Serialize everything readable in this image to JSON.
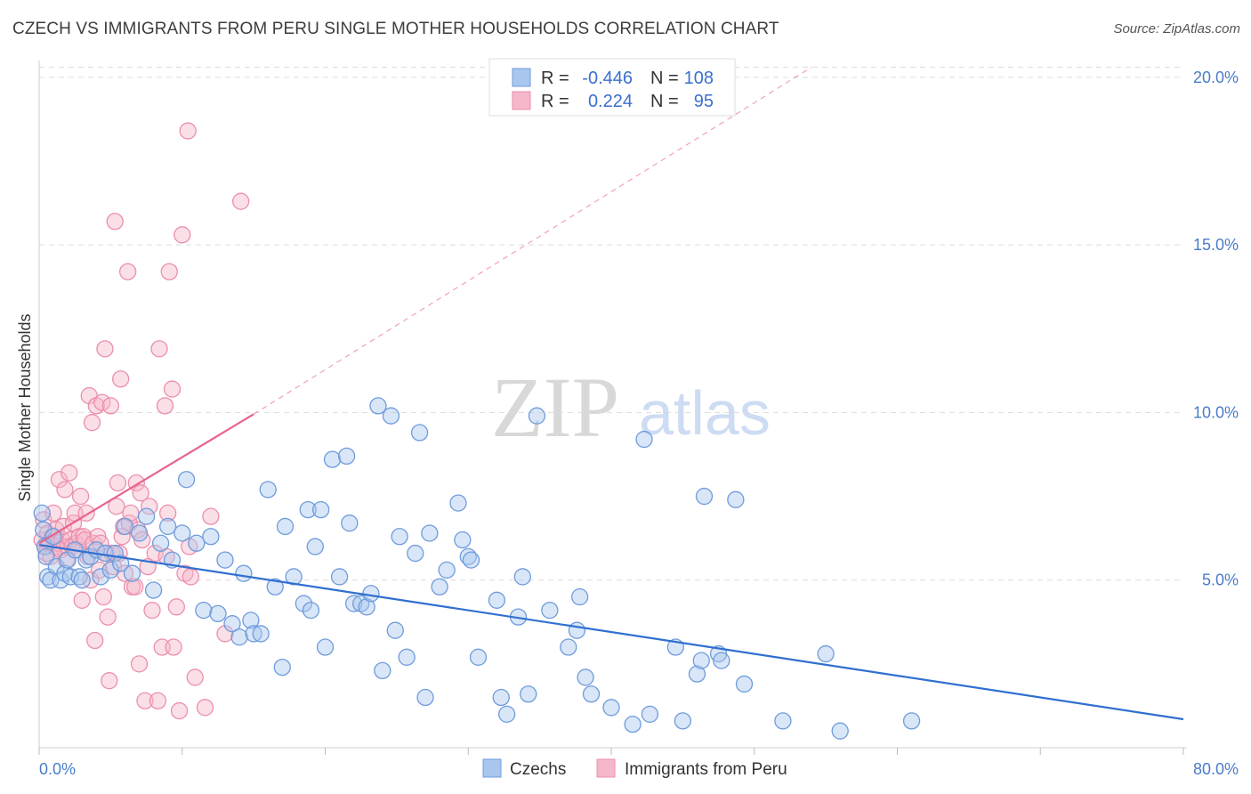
{
  "title": "CZECH VS IMMIGRANTS FROM PERU SINGLE MOTHER HOUSEHOLDS CORRELATION CHART",
  "source": "Source: ZipAtlas.com",
  "watermark": {
    "zip": "ZIP",
    "atlas": "atlas"
  },
  "legend": {
    "rows": [
      {
        "r_label": "R =",
        "r_value": "-0.446",
        "n_label": "N =",
        "n_value": "108"
      },
      {
        "r_label": "R =",
        "r_value": "0.224",
        "n_label": "N =",
        "n_value": "95"
      }
    ]
  },
  "bottom_legend": [
    "Czechs",
    "Immigrants from Peru"
  ],
  "colors": {
    "czechs_fill": "#a9c7ee",
    "czechs_stroke": "#6f9bdc",
    "czechs_line": "#2f6fd0",
    "peru_fill": "#f5b7c9",
    "peru_stroke": "#ec8fab",
    "peru_line": "#e8628c",
    "grid": "#dcdcdc",
    "tick": "#4a7cc9"
  },
  "chart_data": {
    "type": "scatter",
    "title": "CZECH VS IMMIGRANTS FROM PERU SINGLE MOTHER HOUSEHOLDS CORRELATION CHART",
    "xlabel": "",
    "ylabel": "Single Mother Households",
    "xlim": [
      0,
      80
    ],
    "ylim": [
      0,
      20.5
    ],
    "x_tick_labels": [
      "0.0%",
      "80.0%"
    ],
    "y_ticks": [
      5,
      10,
      15,
      20
    ],
    "y_tick_labels": [
      "5.0%",
      "10.0%",
      "15.0%",
      "20.0%"
    ],
    "grid": true,
    "legend_position": "top-center",
    "series": [
      {
        "name": "Czechs",
        "r": -0.446,
        "n": 108,
        "trend": {
          "x0": 0,
          "y0": 6.05,
          "x1": 80,
          "y1": 0.85
        },
        "points": [
          [
            0.2,
            7.0
          ],
          [
            0.3,
            6.5
          ],
          [
            0.4,
            6.0
          ],
          [
            0.5,
            5.7
          ],
          [
            0.6,
            5.1
          ],
          [
            0.8,
            5.0
          ],
          [
            1.0,
            6.3
          ],
          [
            1.2,
            5.4
          ],
          [
            1.5,
            5.0
          ],
          [
            1.8,
            5.2
          ],
          [
            2.0,
            5.6
          ],
          [
            2.2,
            5.1
          ],
          [
            2.5,
            5.9
          ],
          [
            2.8,
            5.1
          ],
          [
            3.0,
            5.0
          ],
          [
            3.3,
            5.6
          ],
          [
            3.6,
            5.7
          ],
          [
            4.0,
            5.9
          ],
          [
            4.3,
            5.1
          ],
          [
            4.6,
            5.8
          ],
          [
            5.0,
            5.3
          ],
          [
            5.3,
            5.8
          ],
          [
            5.7,
            5.5
          ],
          [
            6.0,
            6.6
          ],
          [
            6.5,
            5.2
          ],
          [
            7.0,
            6.4
          ],
          [
            7.5,
            6.9
          ],
          [
            8.0,
            4.7
          ],
          [
            8.5,
            6.1
          ],
          [
            9.0,
            6.6
          ],
          [
            9.3,
            5.6
          ],
          [
            10.0,
            6.4
          ],
          [
            10.3,
            8.0
          ],
          [
            11.0,
            6.1
          ],
          [
            11.5,
            4.1
          ],
          [
            12.0,
            6.3
          ],
          [
            12.5,
            4.0
          ],
          [
            13.0,
            5.6
          ],
          [
            13.5,
            3.7
          ],
          [
            14.0,
            3.3
          ],
          [
            14.3,
            5.2
          ],
          [
            14.8,
            3.8
          ],
          [
            15.0,
            3.4
          ],
          [
            15.5,
            3.4
          ],
          [
            16.0,
            7.7
          ],
          [
            16.5,
            4.8
          ],
          [
            17.0,
            2.4
          ],
          [
            17.2,
            6.6
          ],
          [
            17.8,
            5.1
          ],
          [
            18.5,
            4.3
          ],
          [
            18.8,
            7.1
          ],
          [
            19.0,
            4.1
          ],
          [
            19.3,
            6.0
          ],
          [
            19.7,
            7.1
          ],
          [
            20.0,
            3.0
          ],
          [
            20.5,
            8.6
          ],
          [
            21.0,
            5.1
          ],
          [
            21.5,
            8.7
          ],
          [
            21.7,
            6.7
          ],
          [
            22.0,
            4.3
          ],
          [
            22.5,
            4.3
          ],
          [
            22.9,
            4.2
          ],
          [
            23.2,
            4.6
          ],
          [
            23.7,
            10.2
          ],
          [
            24.0,
            2.3
          ],
          [
            24.6,
            9.9
          ],
          [
            24.9,
            3.5
          ],
          [
            25.2,
            6.3
          ],
          [
            25.7,
            2.7
          ],
          [
            26.3,
            5.8
          ],
          [
            26.6,
            9.4
          ],
          [
            27.0,
            1.5
          ],
          [
            27.3,
            6.4
          ],
          [
            28.0,
            4.8
          ],
          [
            28.5,
            5.3
          ],
          [
            29.3,
            7.3
          ],
          [
            29.6,
            6.2
          ],
          [
            30.0,
            5.7
          ],
          [
            30.2,
            5.6
          ],
          [
            30.7,
            2.7
          ],
          [
            32.0,
            4.4
          ],
          [
            32.3,
            1.5
          ],
          [
            32.7,
            1.0
          ],
          [
            33.5,
            3.9
          ],
          [
            33.8,
            5.1
          ],
          [
            34.2,
            1.6
          ],
          [
            34.8,
            9.9
          ],
          [
            35.7,
            4.1
          ],
          [
            37.0,
            3.0
          ],
          [
            37.6,
            3.5
          ],
          [
            37.8,
            4.5
          ],
          [
            38.2,
            2.1
          ],
          [
            38.6,
            1.6
          ],
          [
            40.0,
            1.2
          ],
          [
            41.5,
            0.7
          ],
          [
            42.3,
            9.2
          ],
          [
            42.7,
            1.0
          ],
          [
            44.5,
            3.0
          ],
          [
            45.0,
            0.8
          ],
          [
            46.5,
            7.5
          ],
          [
            46.0,
            2.2
          ],
          [
            46.3,
            2.6
          ],
          [
            47.5,
            2.8
          ],
          [
            47.7,
            2.6
          ],
          [
            48.7,
            7.4
          ],
          [
            49.3,
            1.9
          ],
          [
            52.0,
            0.8
          ],
          [
            55.0,
            2.8
          ],
          [
            56.0,
            0.5
          ],
          [
            61.0,
            0.8
          ]
        ]
      },
      {
        "name": "Immigrants from Peru",
        "r": 0.224,
        "n": 95,
        "trend": {
          "x0": 0,
          "y0": 6.1,
          "x1": 15,
          "y1": 9.95
        },
        "trend_extension": {
          "x0": 15,
          "y0": 9.95,
          "x1": 54,
          "y1": 20.3
        },
        "points": [
          [
            0.2,
            6.2
          ],
          [
            0.3,
            6.8
          ],
          [
            0.4,
            6.0
          ],
          [
            0.5,
            5.8
          ],
          [
            0.6,
            6.4
          ],
          [
            0.7,
            6.1
          ],
          [
            0.8,
            5.7
          ],
          [
            0.9,
            6.3
          ],
          [
            1.0,
            7.0
          ],
          [
            1.1,
            6.0
          ],
          [
            1.2,
            6.5
          ],
          [
            1.3,
            6.1
          ],
          [
            1.4,
            8.0
          ],
          [
            1.5,
            5.9
          ],
          [
            1.6,
            6.2
          ],
          [
            1.7,
            6.6
          ],
          [
            1.8,
            7.7
          ],
          [
            1.9,
            5.6
          ],
          [
            2.0,
            6.0
          ],
          [
            2.1,
            8.2
          ],
          [
            2.2,
            6.2
          ],
          [
            2.3,
            6.0
          ],
          [
            2.4,
            6.7
          ],
          [
            2.5,
            7.0
          ],
          [
            2.6,
            6.1
          ],
          [
            2.7,
            5.9
          ],
          [
            2.8,
            6.3
          ],
          [
            2.9,
            7.5
          ],
          [
            3.0,
            4.4
          ],
          [
            3.1,
            6.3
          ],
          [
            3.2,
            6.2
          ],
          [
            3.3,
            7.0
          ],
          [
            3.4,
            5.7
          ],
          [
            3.5,
            10.5
          ],
          [
            3.6,
            5.0
          ],
          [
            3.7,
            9.7
          ],
          [
            3.8,
            6.1
          ],
          [
            3.9,
            3.2
          ],
          [
            4.0,
            10.2
          ],
          [
            4.1,
            6.3
          ],
          [
            4.2,
            5.3
          ],
          [
            4.3,
            6.1
          ],
          [
            4.4,
            10.3
          ],
          [
            4.5,
            4.5
          ],
          [
            4.6,
            11.9
          ],
          [
            4.7,
            5.8
          ],
          [
            4.8,
            3.9
          ],
          [
            4.9,
            2.0
          ],
          [
            5.0,
            10.2
          ],
          [
            5.1,
            5.8
          ],
          [
            5.2,
            5.4
          ],
          [
            5.3,
            15.7
          ],
          [
            5.4,
            7.2
          ],
          [
            5.5,
            7.9
          ],
          [
            5.6,
            5.8
          ],
          [
            5.7,
            11.0
          ],
          [
            5.8,
            6.3
          ],
          [
            5.9,
            6.6
          ],
          [
            6.0,
            5.2
          ],
          [
            6.2,
            14.2
          ],
          [
            6.3,
            6.7
          ],
          [
            6.4,
            7.0
          ],
          [
            6.5,
            4.8
          ],
          [
            6.7,
            4.8
          ],
          [
            6.8,
            7.9
          ],
          [
            6.9,
            6.5
          ],
          [
            7.0,
            2.5
          ],
          [
            7.1,
            7.6
          ],
          [
            7.2,
            6.2
          ],
          [
            7.4,
            1.4
          ],
          [
            7.6,
            5.4
          ],
          [
            7.7,
            7.2
          ],
          [
            7.9,
            4.1
          ],
          [
            8.1,
            5.8
          ],
          [
            8.3,
            1.4
          ],
          [
            8.4,
            11.9
          ],
          [
            8.6,
            3.0
          ],
          [
            8.8,
            10.2
          ],
          [
            8.9,
            5.7
          ],
          [
            9.0,
            7.0
          ],
          [
            9.1,
            14.2
          ],
          [
            9.3,
            10.7
          ],
          [
            9.4,
            3.0
          ],
          [
            9.6,
            4.2
          ],
          [
            9.8,
            1.1
          ],
          [
            10.0,
            15.3
          ],
          [
            10.2,
            5.2
          ],
          [
            10.4,
            18.4
          ],
          [
            10.5,
            6.0
          ],
          [
            10.6,
            5.1
          ],
          [
            10.9,
            2.1
          ],
          [
            11.6,
            1.2
          ],
          [
            12.0,
            6.9
          ],
          [
            13.0,
            3.4
          ],
          [
            14.1,
            16.3
          ]
        ]
      }
    ]
  }
}
